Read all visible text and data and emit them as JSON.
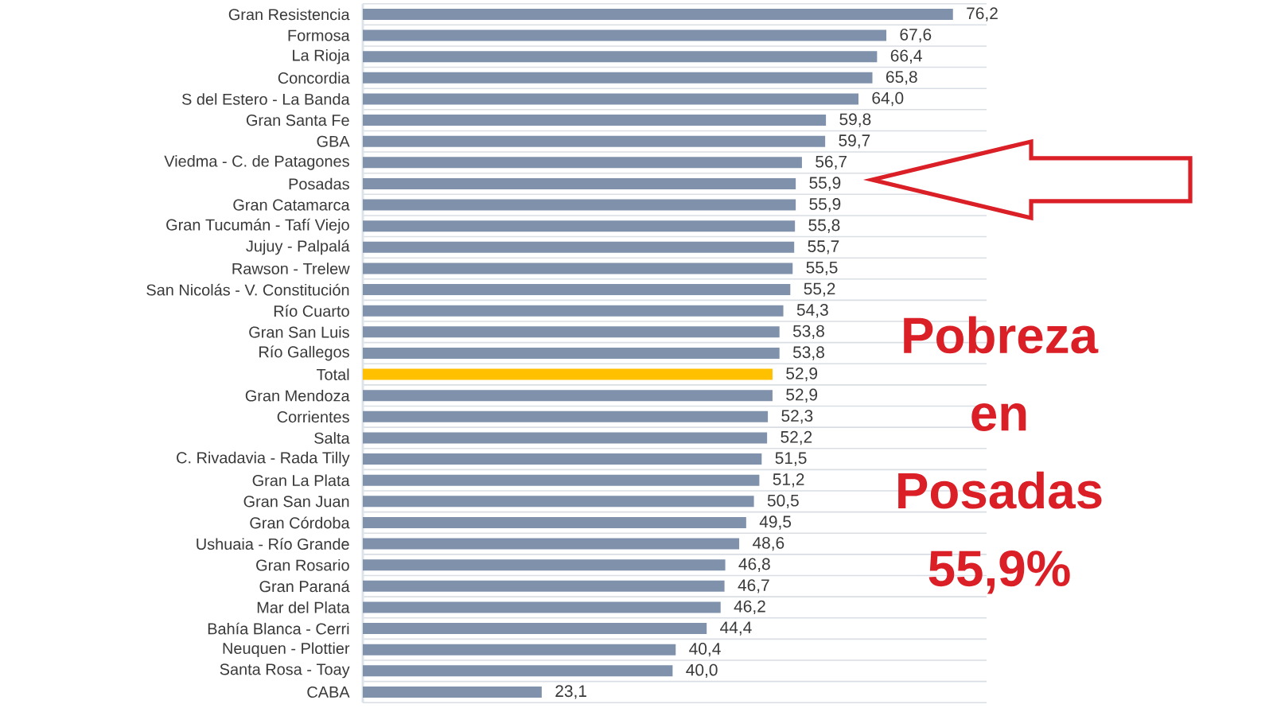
{
  "chart_data": {
    "type": "bar",
    "orientation": "horizontal",
    "categories": [
      "Gran Resistencia",
      "Formosa",
      "La Rioja",
      "Concordia",
      "S del Estero - La Banda",
      "Gran Santa Fe",
      "GBA",
      "Viedma - C. de Patagones",
      "Posadas",
      "Gran Catamarca",
      "Gran Tucumán - Tafí Viejo",
      "Jujuy - Palpalá",
      "Rawson - Trelew",
      "San Nicolás - V. Constitución",
      "Río Cuarto",
      "Gran San Luis",
      "Río Gallegos",
      "Total",
      "Gran Mendoza",
      "Corrientes",
      "Salta",
      "C. Rivadavia - Rada Tilly",
      "Gran La Plata",
      "Gran San Juan",
      "Gran Córdoba",
      "Ushuaia - Río Grande",
      "Gran Rosario",
      "Gran Paraná",
      "Mar del Plata",
      "Bahía Blanca - Cerri",
      "Neuquen - Plottier",
      "Santa Rosa - Toay",
      "CABA"
    ],
    "values": [
      76.2,
      67.6,
      66.4,
      65.8,
      64.0,
      59.8,
      59.7,
      56.7,
      55.9,
      55.9,
      55.8,
      55.7,
      55.5,
      55.2,
      54.3,
      53.8,
      53.8,
      52.9,
      52.9,
      52.3,
      52.2,
      51.5,
      51.2,
      50.5,
      49.5,
      48.6,
      46.8,
      46.7,
      46.2,
      44.4,
      40.4,
      40.0,
      23.1
    ],
    "value_labels": [
      "76,2",
      "67,6",
      "66,4",
      "65,8",
      "64,0",
      "59,8",
      "59,7",
      "56,7",
      "55,9",
      "55,9",
      "55,8",
      "55,7",
      "55,5",
      "55,2",
      "54,3",
      "53,8",
      "53,8",
      "52,9",
      "52,9",
      "52,3",
      "52,2",
      "51,5",
      "51,2",
      "50,5",
      "49,5",
      "48,6",
      "46,8",
      "46,7",
      "46,2",
      "44,4",
      "40,4",
      "40,0",
      "23,1"
    ],
    "colors": [
      "#8091ab",
      "#8091ab",
      "#8091ab",
      "#8091ab",
      "#8091ab",
      "#8091ab",
      "#8091ab",
      "#8091ab",
      "#8091ab",
      "#8091ab",
      "#8091ab",
      "#8091ab",
      "#8091ab",
      "#8091ab",
      "#8091ab",
      "#8091ab",
      "#8091ab",
      "#ffc000",
      "#8091ab",
      "#8091ab",
      "#8091ab",
      "#8091ab",
      "#8091ab",
      "#8091ab",
      "#8091ab",
      "#8091ab",
      "#8091ab",
      "#8091ab",
      "#8091ab",
      "#8091ab",
      "#8091ab",
      "#8091ab",
      "#8091ab"
    ],
    "grid": "y",
    "annotations": [
      "Pobreza en Posadas 55,9%"
    ]
  }
}
